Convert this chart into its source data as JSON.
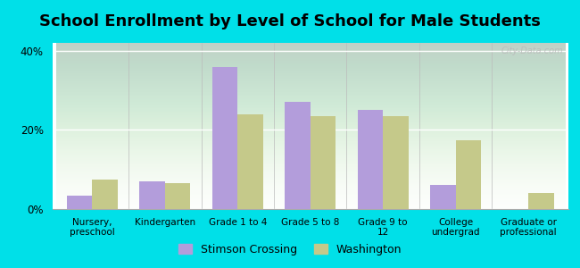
{
  "title": "School Enrollment by Level of School for Male Students",
  "categories": [
    "Nursery,\npreschool",
    "Kindergarten",
    "Grade 1 to 4",
    "Grade 5 to 8",
    "Grade 9 to\n12",
    "College\nundergrad",
    "Graduate or\nprofessional"
  ],
  "stimson_values": [
    3.5,
    7.0,
    36.0,
    27.0,
    25.0,
    6.0,
    0.0
  ],
  "washington_values": [
    7.5,
    6.5,
    24.0,
    23.5,
    23.5,
    17.5,
    4.0
  ],
  "stimson_color": "#b39ddb",
  "washington_color": "#c5c98a",
  "background_outer": "#00e0e8",
  "ylim": [
    0,
    42
  ],
  "yticks": [
    0,
    20,
    40
  ],
  "ytick_labels": [
    "0%",
    "20%",
    "40%"
  ],
  "legend_label_stimson": "Stimson Crossing",
  "legend_label_washington": "Washington",
  "bar_width": 0.35,
  "title_fontsize": 13,
  "watermark_text": "City-Data.com"
}
